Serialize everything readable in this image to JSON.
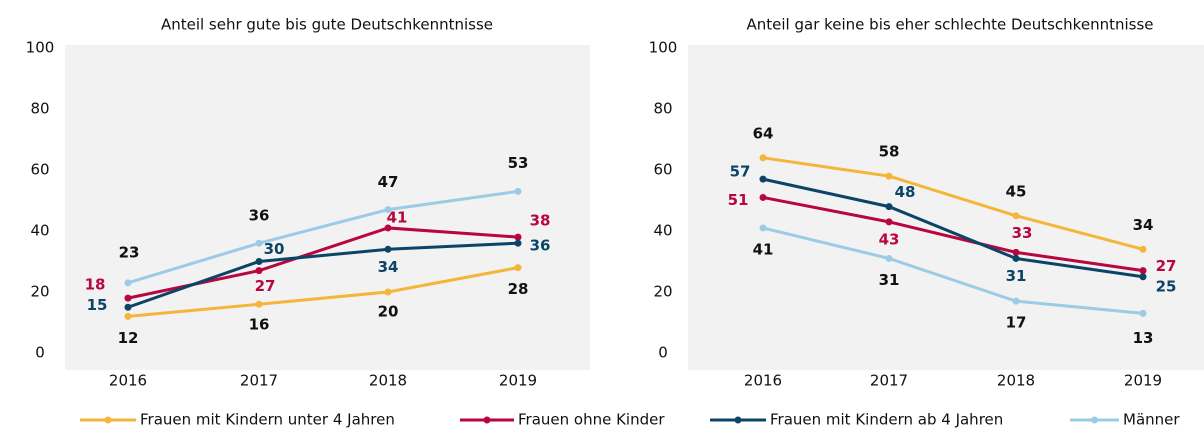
{
  "chart_data": [
    {
      "type": "line",
      "title": "Anteil sehr gute bis gute Deutschkenntnisse",
      "categories": [
        "2016",
        "2017",
        "2018",
        "2019"
      ],
      "ylim": [
        0,
        100
      ],
      "yticks": [
        0,
        20,
        40,
        60,
        80,
        100
      ],
      "series": [
        {
          "name": "Frauen mit Kindern unter 4 Jahren",
          "color": "#f4b63a",
          "label_color": "#111111",
          "values": [
            12,
            16,
            20,
            28
          ]
        },
        {
          "name": "Frauen ohne Kinder",
          "color": "#b8063f",
          "label_color": "#b8063f",
          "values": [
            18,
            27,
            41,
            38
          ]
        },
        {
          "name": "Frauen mit Kindern ab 4 Jahren",
          "color": "#0c4467",
          "label_color": "#0c4467",
          "values": [
            15,
            30,
            34,
            36
          ]
        },
        {
          "name": "Männer",
          "color": "#9ccbe6",
          "label_color": "#111111",
          "values": [
            23,
            36,
            47,
            53
          ]
        }
      ]
    },
    {
      "type": "line",
      "title": "Anteil gar keine bis eher schlechte Deutschkenntnisse",
      "categories": [
        "2016",
        "2017",
        "2018",
        "2019"
      ],
      "ylim": [
        0,
        100
      ],
      "yticks": [
        0,
        20,
        40,
        60,
        80,
        100
      ],
      "series": [
        {
          "name": "Frauen mit Kindern unter 4 Jahren",
          "color": "#f4b63a",
          "label_color": "#111111",
          "values": [
            64,
            58,
            45,
            34
          ]
        },
        {
          "name": "Frauen ohne Kinder",
          "color": "#b8063f",
          "label_color": "#b8063f",
          "values": [
            51,
            43,
            33,
            27
          ]
        },
        {
          "name": "Frauen mit Kindern ab 4 Jahren",
          "color": "#0c4467",
          "label_color": "#0c4467",
          "values": [
            57,
            48,
            31,
            25
          ]
        },
        {
          "name": "Männer",
          "color": "#9ccbe6",
          "label_color": "#111111",
          "values": [
            41,
            31,
            17,
            13
          ]
        }
      ]
    }
  ]
}
